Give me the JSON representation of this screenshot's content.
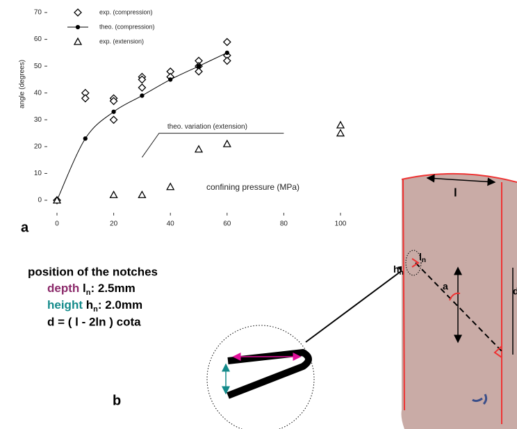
{
  "chart_data": {
    "type": "scatter",
    "y_label": "angle (degrees)",
    "x_label": "confining pressure (MPa)",
    "xlim": [
      0,
      100
    ],
    "ylim": [
      0,
      70
    ],
    "xticks": [
      0,
      20,
      40,
      60,
      80,
      100
    ],
    "yticks": [
      0,
      10,
      20,
      30,
      40,
      50,
      60,
      70
    ],
    "series": [
      {
        "name": "exp. (compression)",
        "marker": "diamond",
        "color": "#000000",
        "x": [
          0,
          10,
          10,
          20,
          20,
          20,
          30,
          30,
          30,
          40,
          40,
          50,
          50,
          50,
          60,
          60,
          60
        ],
        "values": [
          0,
          40,
          38,
          38,
          37,
          30,
          46,
          45,
          42,
          48,
          46,
          52,
          50,
          48,
          59,
          54,
          52
        ]
      },
      {
        "name": "theo. (compression)",
        "marker": "dot",
        "line": true,
        "color": "#000000",
        "x": [
          0,
          10,
          20,
          30,
          40,
          50,
          60
        ],
        "values": [
          0,
          23,
          33,
          39,
          45,
          50,
          55
        ]
      },
      {
        "name": "exp. (extension)",
        "marker": "triangle",
        "color": "#000000",
        "x": [
          0,
          20,
          30,
          40,
          50,
          60,
          100,
          100
        ],
        "values": [
          0,
          2,
          2,
          5,
          19,
          21,
          28,
          25
        ]
      }
    ],
    "annotations": [
      {
        "text": "theo. variation (extension)",
        "x": [
          30,
          36,
          80
        ],
        "y": [
          16,
          25,
          25
        ]
      }
    ]
  },
  "figure": {
    "panel_a": "a",
    "panel_b": "b",
    "notches_title": "position of the notches",
    "depth": {
      "word": "depth",
      "symbol": "l",
      "sub": "n",
      "rest": ": 2.5mm"
    },
    "height": {
      "word": "height",
      "symbol": "h",
      "sub": "n",
      "rest": ":  2.0mm"
    },
    "formula": "d = ( l - 2ln ) cota",
    "photo_labels": {
      "l": "l",
      "ln": "l",
      "ln_sub": "n",
      "hn": "h",
      "hn_sub": "n",
      "a": "a",
      "d": "d"
    }
  }
}
